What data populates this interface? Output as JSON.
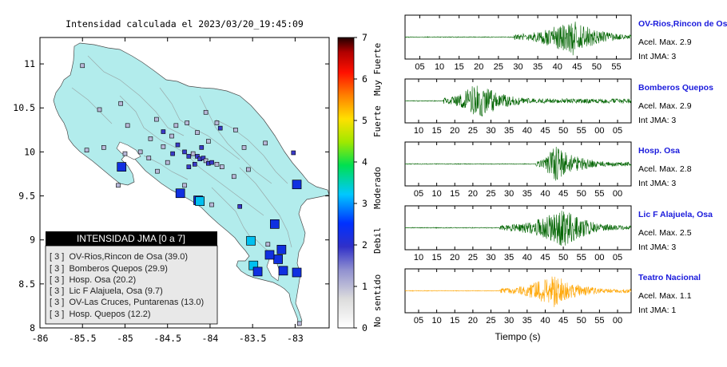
{
  "map": {
    "title": "Intensidad calculada el 2023/03/20_19:45:09",
    "xticks": [
      "-86",
      "-85.5",
      "-85",
      "-84.5",
      "-84",
      "-83.5",
      "-83"
    ],
    "xtick_values": [
      -86,
      -85.5,
      -85,
      -84.5,
      -84,
      -83.5,
      -83
    ],
    "yticks": [
      "8",
      "8.5",
      "9",
      "9.5",
      "10",
      "10.5",
      "11"
    ],
    "ytick_values": [
      8,
      8.5,
      9,
      9.5,
      10,
      10.5,
      11
    ],
    "xlim": [
      -86,
      -82.6
    ],
    "ylim": [
      8,
      11.3
    ],
    "land_color": "#b2ecec",
    "legend": {
      "title": "INTENSIDAD JMA [0 a 7]",
      "items": [
        "[ 3 ]  OV-Rios,Rincon de Osa (39.0)",
        "[ 3 ]  Bomberos Quepos (29.9)",
        "[ 3 ]  Hosp. Osa (20.2)",
        "[ 3 ]  Lic F Alajuela, Osa (9.7)",
        "[ 3 ]  OV-Las Cruces, Puntarenas (13.0)",
        "[ 3 ]  Hosp. Quepos (12.2)"
      ]
    }
  },
  "colorbar": {
    "ticks": [
      "0",
      "1",
      "2",
      "3",
      "4",
      "5",
      "6",
      "7"
    ],
    "labels": [
      "No sentido",
      "Debil",
      "Moderado",
      "Fuerte",
      "Muy Fuerte"
    ]
  },
  "chart_data": {
    "type": "scatter",
    "title": "Intensidad calculada el 2023/03/20_19:45:09",
    "colorscale_range": [
      0,
      7
    ],
    "stations_large": [
      {
        "lon": -85.04,
        "lat": 9.83,
        "intensity": 2
      },
      {
        "lon": -84.35,
        "lat": 9.53,
        "intensity": 2
      },
      {
        "lon": -84.14,
        "lat": 9.45,
        "intensity": 2
      },
      {
        "lon": -84.12,
        "lat": 9.44,
        "intensity": 3
      },
      {
        "lon": -82.98,
        "lat": 9.63,
        "intensity": 2
      },
      {
        "lon": -83.24,
        "lat": 9.18,
        "intensity": 2
      },
      {
        "lon": -83.52,
        "lat": 8.99,
        "intensity": 3
      },
      {
        "lon": -83.16,
        "lat": 8.89,
        "intensity": 2
      },
      {
        "lon": -83.2,
        "lat": 8.78,
        "intensity": 2
      },
      {
        "lon": -83.3,
        "lat": 8.83,
        "intensity": 2
      },
      {
        "lon": -83.49,
        "lat": 8.71,
        "intensity": 3
      },
      {
        "lon": -83.44,
        "lat": 8.64,
        "intensity": 2
      },
      {
        "lon": -83.14,
        "lat": 8.65,
        "intensity": 2
      },
      {
        "lon": -82.98,
        "lat": 8.63,
        "intensity": 2
      }
    ],
    "stations_small": [
      {
        "lon": -85.5,
        "lat": 10.98,
        "intensity": 1
      },
      {
        "lon": -85.3,
        "lat": 10.48,
        "intensity": 1
      },
      {
        "lon": -85.05,
        "lat": 10.55,
        "intensity": 1
      },
      {
        "lon": -84.63,
        "lat": 10.37,
        "intensity": 1
      },
      {
        "lon": -84.05,
        "lat": 10.45,
        "intensity": 1
      },
      {
        "lon": -83.7,
        "lat": 10.25,
        "intensity": 1
      },
      {
        "lon": -84.97,
        "lat": 10.3,
        "intensity": 1
      },
      {
        "lon": -85.25,
        "lat": 10.05,
        "intensity": 1
      },
      {
        "lon": -85.0,
        "lat": 9.98,
        "intensity": 1
      },
      {
        "lon": -84.7,
        "lat": 10.15,
        "intensity": 1
      },
      {
        "lon": -84.55,
        "lat": 10.23,
        "intensity": 2
      },
      {
        "lon": -84.45,
        "lat": 10.18,
        "intensity": 1
      },
      {
        "lon": -84.38,
        "lat": 10.08,
        "intensity": 2
      },
      {
        "lon": -84.3,
        "lat": 10.0,
        "intensity": 2
      },
      {
        "lon": -84.25,
        "lat": 9.95,
        "intensity": 2
      },
      {
        "lon": -84.2,
        "lat": 9.98,
        "intensity": 1
      },
      {
        "lon": -84.15,
        "lat": 9.95,
        "intensity": 2
      },
      {
        "lon": -84.12,
        "lat": 9.92,
        "intensity": 2
      },
      {
        "lon": -84.08,
        "lat": 9.93,
        "intensity": 2
      },
      {
        "lon": -84.05,
        "lat": 9.9,
        "intensity": 1
      },
      {
        "lon": -84.02,
        "lat": 9.87,
        "intensity": 2
      },
      {
        "lon": -83.98,
        "lat": 9.88,
        "intensity": 2
      },
      {
        "lon": -83.92,
        "lat": 9.86,
        "intensity": 1
      },
      {
        "lon": -83.86,
        "lat": 9.83,
        "intensity": 1
      },
      {
        "lon": -84.18,
        "lat": 9.86,
        "intensity": 2
      },
      {
        "lon": -84.25,
        "lat": 9.83,
        "intensity": 2
      },
      {
        "lon": -84.44,
        "lat": 9.98,
        "intensity": 2
      },
      {
        "lon": -84.5,
        "lat": 9.88,
        "intensity": 1
      },
      {
        "lon": -84.62,
        "lat": 9.78,
        "intensity": 1
      },
      {
        "lon": -84.72,
        "lat": 9.93,
        "intensity": 1
      },
      {
        "lon": -84.82,
        "lat": 10.0,
        "intensity": 1
      },
      {
        "lon": -85.45,
        "lat": 10.02,
        "intensity": 1
      },
      {
        "lon": -85.08,
        "lat": 9.62,
        "intensity": 1
      },
      {
        "lon": -84.15,
        "lat": 10.22,
        "intensity": 1
      },
      {
        "lon": -84.02,
        "lat": 10.12,
        "intensity": 1
      },
      {
        "lon": -83.6,
        "lat": 10.05,
        "intensity": 1
      },
      {
        "lon": -83.35,
        "lat": 10.1,
        "intensity": 1
      },
      {
        "lon": -83.02,
        "lat": 9.99,
        "intensity": 2
      },
      {
        "lon": -83.55,
        "lat": 9.8,
        "intensity": 1
      },
      {
        "lon": -83.72,
        "lat": 9.72,
        "intensity": 1
      },
      {
        "lon": -83.65,
        "lat": 9.38,
        "intensity": 2
      },
      {
        "lon": -83.98,
        "lat": 9.4,
        "intensity": 1
      },
      {
        "lon": -84.3,
        "lat": 9.62,
        "intensity": 1
      },
      {
        "lon": -83.92,
        "lat": 10.33,
        "intensity": 1
      },
      {
        "lon": -84.27,
        "lat": 10.33,
        "intensity": 1
      },
      {
        "lon": -84.4,
        "lat": 10.3,
        "intensity": 1
      },
      {
        "lon": -83.88,
        "lat": 10.27,
        "intensity": 2
      },
      {
        "lon": -84.1,
        "lat": 10.05,
        "intensity": 2
      },
      {
        "lon": -84.55,
        "lat": 10.06,
        "intensity": 1
      },
      {
        "lon": -83.32,
        "lat": 8.95,
        "intensity": 1
      },
      {
        "lon": -82.95,
        "lat": 8.05,
        "intensity": 1
      }
    ]
  },
  "seismograms": {
    "xlabel": "Tiempo (s)",
    "panels": [
      {
        "name": "OV-Rios,Rincon de Osa",
        "accel": "Acel. Max. 2.9",
        "int": "Int JMA: 3",
        "color": "#006400",
        "ticks": [
          "05",
          "10",
          "15",
          "20",
          "25",
          "30",
          "35",
          "40",
          "45",
          "50",
          "55"
        ],
        "onset_frac": 0.48,
        "peak_frac": 0.74,
        "amp": 1.0,
        "show_xlabel": false
      },
      {
        "name": "Bomberos Quepos",
        "accel": "Acel. Max. 2.9",
        "int": "Int JMA: 3",
        "color": "#006400",
        "ticks": [
          "10",
          "15",
          "20",
          "25",
          "30",
          "35",
          "40",
          "45",
          "50",
          "55",
          "00",
          "05"
        ],
        "onset_frac": 0.17,
        "peak_frac": 0.32,
        "amp": 1.0,
        "show_xlabel": false
      },
      {
        "name": "Hosp. Osa",
        "accel": "Acel. Max. 2.8",
        "int": "Int JMA: 3",
        "color": "#006400",
        "ticks": [
          "05",
          "10",
          "15",
          "20",
          "25",
          "30",
          "35",
          "40",
          "45",
          "50",
          "55",
          "00"
        ],
        "onset_frac": 0.58,
        "peak_frac": 0.66,
        "amp": 0.95,
        "show_xlabel": false
      },
      {
        "name": "Lic F Alajuela, Osa",
        "accel": "Acel. Max. 2.5",
        "int": "Int JMA: 3",
        "color": "#006400",
        "ticks": [
          "10",
          "15",
          "20",
          "25",
          "30",
          "35",
          "40",
          "45",
          "50",
          "55",
          "00",
          "05"
        ],
        "onset_frac": 0.42,
        "peak_frac": 0.7,
        "amp": 1.0,
        "show_xlabel": false
      },
      {
        "name": "Teatro Nacional",
        "accel": "Acel. Max. 1.1",
        "int": "Int JMA: 1",
        "color": "#ffa500",
        "ticks": [
          "05",
          "10",
          "15",
          "20",
          "25",
          "30",
          "35",
          "40",
          "45",
          "50",
          "55",
          "00"
        ],
        "onset_frac": 0.42,
        "peak_frac": 0.66,
        "amp": 0.85,
        "show_xlabel": true
      }
    ]
  }
}
